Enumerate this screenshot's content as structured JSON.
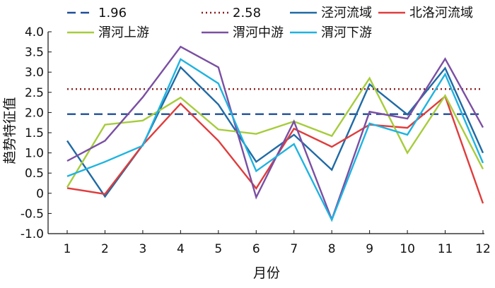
{
  "chart_data": {
    "type": "line",
    "title": "",
    "xlabel": "月份",
    "ylabel": "趋势特征值",
    "categories": [
      "1",
      "2",
      "3",
      "4",
      "5",
      "6",
      "7",
      "8",
      "9",
      "10",
      "11",
      "12"
    ],
    "ylim": [
      -1.0,
      4.0
    ],
    "yticks": [
      "-1.0",
      "-0.5",
      "0",
      "0.5",
      "1.0",
      "1.5",
      "2.0",
      "2.5",
      "3.0",
      "3.5",
      "4.0"
    ],
    "grid": false,
    "legend_position": "top",
    "series": [
      {
        "name": "1.96",
        "color": "#1f4e99",
        "style": "dashed",
        "values": [
          1.96,
          1.96,
          1.96,
          1.96,
          1.96,
          1.96,
          1.96,
          1.96,
          1.96,
          1.96,
          1.96,
          1.96
        ]
      },
      {
        "name": "2.58",
        "color": "#8b1a1a",
        "style": "dotted",
        "values": [
          2.58,
          2.58,
          2.58,
          2.58,
          2.58,
          2.58,
          2.58,
          2.58,
          2.58,
          2.58,
          2.58,
          2.58
        ]
      },
      {
        "name": "泾河流域",
        "color": "#1f6aa5",
        "style": "solid",
        "values": [
          1.3,
          -0.08,
          1.2,
          3.12,
          2.2,
          0.78,
          1.45,
          0.58,
          2.7,
          1.95,
          3.1,
          1.0
        ]
      },
      {
        "name": "北洛河流域",
        "color": "#e03c3c",
        "style": "solid",
        "values": [
          0.13,
          -0.02,
          1.2,
          2.22,
          1.3,
          0.12,
          1.6,
          1.15,
          1.7,
          1.62,
          2.4,
          -0.25
        ]
      },
      {
        "name": "渭河上游",
        "color": "#a6cc3c",
        "style": "solid",
        "values": [
          0.15,
          1.7,
          1.8,
          2.37,
          1.58,
          1.47,
          1.78,
          1.42,
          2.85,
          1.0,
          2.42,
          0.6
        ]
      },
      {
        "name": "渭河中游",
        "color": "#7a4fa3",
        "style": "solid",
        "values": [
          0.8,
          1.3,
          2.38,
          3.63,
          3.12,
          -0.1,
          1.78,
          -0.65,
          2.02,
          1.85,
          3.33,
          1.63
        ]
      },
      {
        "name": "渭河下游",
        "color": "#1fb3e0",
        "style": "solid",
        "values": [
          0.42,
          0.78,
          1.18,
          3.32,
          2.72,
          0.55,
          1.22,
          -0.66,
          1.73,
          1.45,
          2.95,
          0.75
        ]
      }
    ]
  }
}
